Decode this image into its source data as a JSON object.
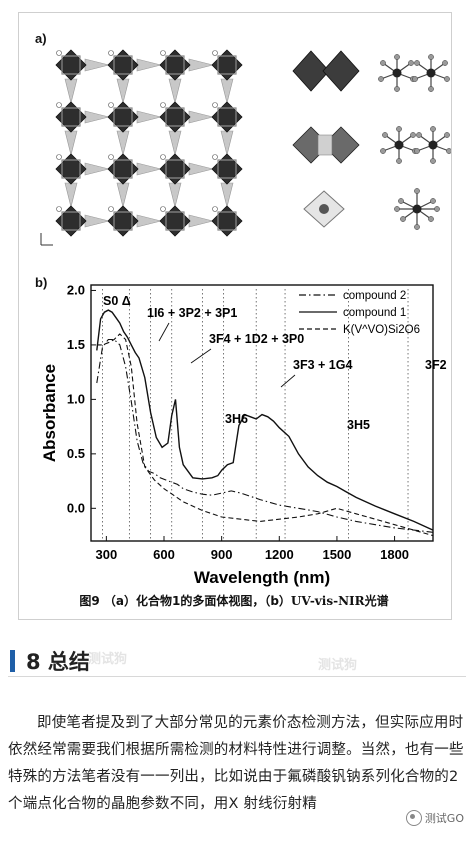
{
  "figure": {
    "panel_a_label": "a)",
    "panel_b_label": "b)",
    "caption_prefix": "图9 （a）化合物1的多面体视图，（b）",
    "caption_suffix": "UV-vis-NIR光谱"
  },
  "chart_data": {
    "type": "line",
    "xlabel": "Wavelength (nm)",
    "ylabel": "Absorbance",
    "xlim": [
      220,
      2000
    ],
    "ylim": [
      -0.3,
      2.05
    ],
    "x_ticks": [
      300,
      600,
      900,
      1200,
      1500,
      1800
    ],
    "y_ticks": [
      0.0,
      0.5,
      1.0,
      1.5,
      2.0
    ],
    "legend_position": "top-right",
    "series": [
      {
        "name": "compound 2",
        "style": "dash-dot",
        "x": [
          250,
          280,
          310,
          340,
          370,
          400,
          430,
          460,
          490,
          520,
          550,
          580,
          610,
          640,
          670,
          700,
          750,
          800,
          850,
          900,
          950,
          1000,
          1100,
          1200,
          1300,
          1400,
          1500,
          1600,
          1700,
          1800,
          1900,
          2000
        ],
        "values": [
          1.15,
          1.48,
          1.55,
          1.55,
          1.5,
          1.3,
          0.98,
          0.62,
          0.42,
          0.34,
          0.32,
          0.28,
          0.26,
          0.24,
          0.22,
          0.18,
          0.15,
          0.13,
          0.12,
          0.14,
          0.16,
          0.14,
          0.08,
          0.03,
          0.0,
          -0.03,
          -0.08,
          -0.12,
          -0.15,
          -0.18,
          -0.2,
          -0.22
        ]
      },
      {
        "name": "compound 1",
        "style": "solid",
        "x": [
          250,
          270,
          290,
          310,
          330,
          350,
          370,
          390,
          410,
          430,
          450,
          470,
          500,
          530,
          560,
          590,
          620,
          640,
          660,
          680,
          700,
          750,
          800,
          850,
          880,
          900,
          930,
          960,
          990,
          1020,
          1050,
          1080,
          1110,
          1140,
          1170,
          1200,
          1250,
          1300,
          1350,
          1400,
          1450,
          1500,
          1550,
          1600,
          1700,
          1800,
          1900,
          2000
        ],
        "values": [
          1.45,
          1.74,
          1.8,
          1.82,
          1.8,
          1.75,
          1.7,
          1.62,
          1.57,
          1.5,
          1.43,
          1.38,
          1.2,
          0.88,
          0.65,
          0.56,
          0.6,
          0.85,
          1.0,
          0.56,
          0.4,
          0.28,
          0.27,
          0.28,
          0.3,
          0.35,
          0.4,
          0.42,
          0.76,
          0.86,
          0.84,
          0.82,
          0.86,
          0.84,
          0.8,
          0.74,
          0.66,
          0.5,
          0.38,
          0.3,
          0.24,
          0.2,
          0.15,
          0.1,
          0.02,
          -0.05,
          -0.12,
          -0.2
        ]
      },
      {
        "name": "K(V^VO)Si2O6",
        "style": "dashed",
        "x": [
          250,
          280,
          310,
          340,
          370,
          400,
          430,
          460,
          500,
          550,
          600,
          650,
          700,
          800,
          900,
          1000,
          1100,
          1200,
          1300,
          1400,
          1500,
          1600,
          1700,
          1800,
          1900,
          2000
        ],
        "values": [
          1.5,
          1.5,
          1.52,
          1.55,
          1.6,
          1.55,
          1.3,
          0.78,
          0.38,
          0.26,
          0.18,
          0.12,
          0.06,
          -0.02,
          -0.08,
          -0.1,
          -0.12,
          -0.1,
          -0.08,
          -0.05,
          0.0,
          -0.05,
          -0.1,
          -0.15,
          -0.2,
          -0.25
        ]
      }
    ],
    "annotations": [
      "S0 Δ",
      "1I6 + 3P2 + 3P1",
      "3F4 + 1D2 + 3P0",
      "3F3 + 1G4",
      "3F2",
      "3H6",
      "3H5"
    ],
    "dotted_markers_x": [
      280,
      420,
      530,
      640,
      800,
      910,
      1080,
      1230,
      1560,
      1870
    ]
  },
  "section": {
    "number_title": "8 总结"
  },
  "body": {
    "paragraph": "即使笔者提及到了大部分常见的元素价态检测方法，但实际应用时依然经常需要我们根据所需检测的材料特性进行调整。当然，也有一些特殊的方法笔者没有一一列出，比如说由于氟磷酸钒钠系列化合物的2个端点化合物的晶胞参数不同，用X 射线衍射精"
  },
  "brand": {
    "badge": "测试GO",
    "watermark_1": "测试狗",
    "watermark_2": "测试狗"
  },
  "colors": {
    "accent": "#1f5fa8",
    "polyhedron_dark": "#2e2e2e",
    "polyhedron_mid": "#8a8a8a",
    "polyhedron_light": "#c8c8c8"
  }
}
